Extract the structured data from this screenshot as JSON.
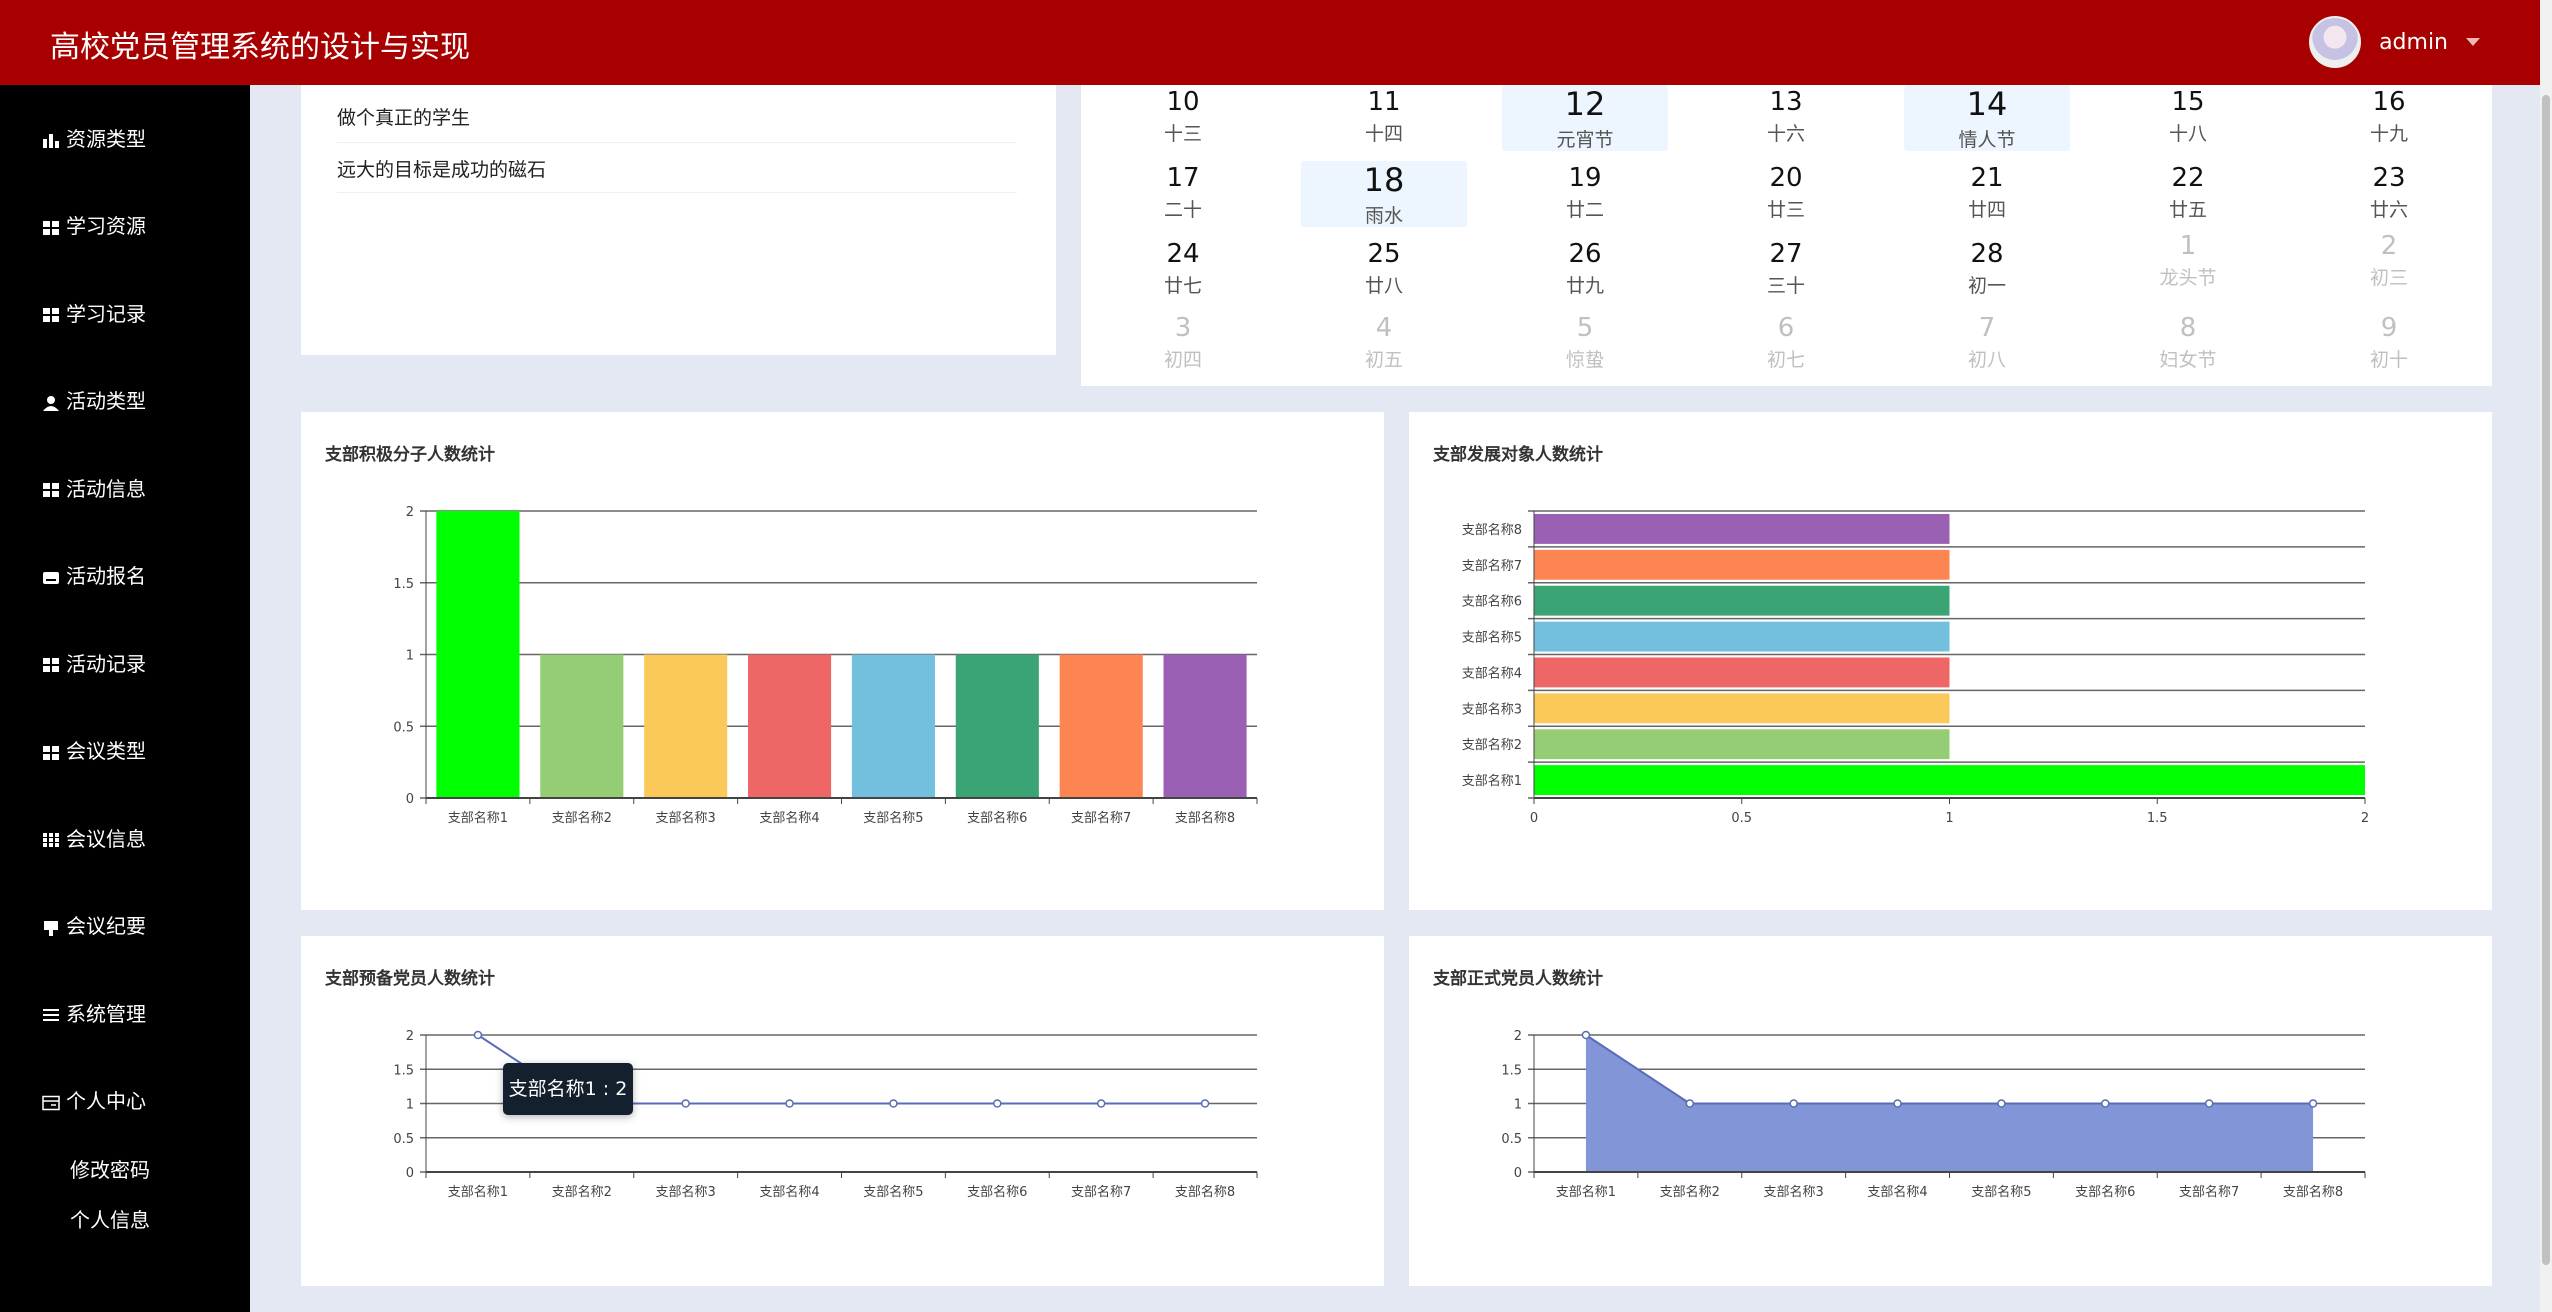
{
  "header": {
    "title": "高校党员管理系统的设计与实现",
    "username": "admin"
  },
  "sidebar": {
    "items": [
      {
        "label": "资源类型",
        "icon": "bar-chart-icon"
      },
      {
        "label": "学习资源",
        "icon": "grid-icon"
      },
      {
        "label": "学习记录",
        "icon": "grid-icon"
      },
      {
        "label": "活动类型",
        "icon": "user-icon"
      },
      {
        "label": "活动信息",
        "icon": "grid-icon"
      },
      {
        "label": "活动报名",
        "icon": "inbox-icon"
      },
      {
        "label": "活动记录",
        "icon": "grid-icon"
      },
      {
        "label": "会议类型",
        "icon": "grid-icon"
      },
      {
        "label": "会议信息",
        "icon": "grid-nine-icon"
      },
      {
        "label": "会议纪要",
        "icon": "pin-icon"
      },
      {
        "label": "系统管理",
        "icon": "list-icon"
      },
      {
        "label": "个人中心",
        "icon": "card-icon"
      }
    ],
    "subitems": [
      {
        "label": "修改密码"
      },
      {
        "label": "个人信息"
      }
    ]
  },
  "quotes": [
    "做个真正的学生",
    "远大的目标是成功的磁石"
  ],
  "calendar": {
    "rows": [
      [
        {
          "d": "10",
          "l": "十三"
        },
        {
          "d": "11",
          "l": "十四"
        },
        {
          "d": "12",
          "l": "元宵节",
          "hl": true
        },
        {
          "d": "13",
          "l": "十六"
        },
        {
          "d": "14",
          "l": "情人节",
          "hl": true
        },
        {
          "d": "15",
          "l": "十八"
        },
        {
          "d": "16",
          "l": "十九"
        }
      ],
      [
        {
          "d": "17",
          "l": "二十"
        },
        {
          "d": "18",
          "l": "雨水",
          "hl": true
        },
        {
          "d": "19",
          "l": "廿二"
        },
        {
          "d": "20",
          "l": "廿三"
        },
        {
          "d": "21",
          "l": "廿四"
        },
        {
          "d": "22",
          "l": "廿五"
        },
        {
          "d": "23",
          "l": "廿六"
        }
      ],
      [
        {
          "d": "24",
          "l": "廿七"
        },
        {
          "d": "25",
          "l": "廿八"
        },
        {
          "d": "26",
          "l": "廿九"
        },
        {
          "d": "27",
          "l": "三十"
        },
        {
          "d": "28",
          "l": "初一"
        },
        {
          "d": "1",
          "l": "龙头节",
          "dim": true
        },
        {
          "d": "2",
          "l": "初三",
          "dim": true
        }
      ],
      [
        {
          "d": "3",
          "l": "初四",
          "dim": true
        },
        {
          "d": "4",
          "l": "初五",
          "dim": true
        },
        {
          "d": "5",
          "l": "惊蛰",
          "dim": true
        },
        {
          "d": "6",
          "l": "初七",
          "dim": true
        },
        {
          "d": "7",
          "l": "初八",
          "dim": true
        },
        {
          "d": "8",
          "l": "妇女节",
          "dim": true
        },
        {
          "d": "9",
          "l": "初十",
          "dim": true
        }
      ]
    ]
  },
  "chart_data": [
    {
      "id": "c1",
      "type": "bar",
      "title": "支部积极分子人数统计",
      "categories": [
        "支部名称1",
        "支部名称2",
        "支部名称3",
        "支部名称4",
        "支部名称5",
        "支部名称6",
        "支部名称7",
        "支部名称8"
      ],
      "values": [
        2,
        1,
        1,
        1,
        1,
        1,
        1,
        1
      ],
      "ylim": [
        0,
        2
      ],
      "ticks": [
        "0",
        "0.5",
        "1",
        "1.5",
        "2"
      ],
      "colors": [
        "#00ff00",
        "#95cd75",
        "#fbc95a",
        "#ee6666",
        "#73bfde",
        "#3ba474",
        "#fc8552",
        "#9a60b4"
      ]
    },
    {
      "id": "c2",
      "type": "bar-horizontal",
      "title": "支部发展对象人数统计",
      "categories": [
        "支部名称1",
        "支部名称2",
        "支部名称3",
        "支部名称4",
        "支部名称5",
        "支部名称6",
        "支部名称7",
        "支部名称8"
      ],
      "values": [
        2,
        1,
        1,
        1,
        1,
        1,
        1,
        1
      ],
      "xlim": [
        0,
        2
      ],
      "ticks": [
        "0",
        "0.5",
        "1",
        "1.5",
        "2"
      ],
      "colors": [
        "#00ff00",
        "#95cd75",
        "#fbc95a",
        "#ee6666",
        "#73bfde",
        "#3ba474",
        "#fc8552",
        "#9a60b4"
      ]
    },
    {
      "id": "c3",
      "type": "line",
      "title": "支部预备党员人数统计",
      "categories": [
        "支部名称1",
        "支部名称2",
        "支部名称3",
        "支部名称4",
        "支部名称5",
        "支部名称6",
        "支部名称7",
        "支部名称8"
      ],
      "values": [
        2,
        1,
        1,
        1,
        1,
        1,
        1,
        1
      ],
      "ylim": [
        0,
        2
      ],
      "ticks": [
        "0",
        "0.5",
        "1",
        "1.5",
        "2"
      ],
      "color": "#5a6bb8",
      "tooltip": "支部名称1 : 2"
    },
    {
      "id": "c4",
      "type": "area",
      "title": "支部正式党员人数统计",
      "categories": [
        "支部名称1",
        "支部名称2",
        "支部名称3",
        "支部名称4",
        "支部名称5",
        "支部名称6",
        "支部名称7",
        "支部名称8"
      ],
      "values": [
        2,
        1,
        1,
        1,
        1,
        1,
        1,
        1
      ],
      "ylim": [
        0,
        2
      ],
      "ticks": [
        "0",
        "0.5",
        "1",
        "1.5",
        "2"
      ],
      "color": "#5a6bb8",
      "fill": "#8195d7"
    }
  ]
}
